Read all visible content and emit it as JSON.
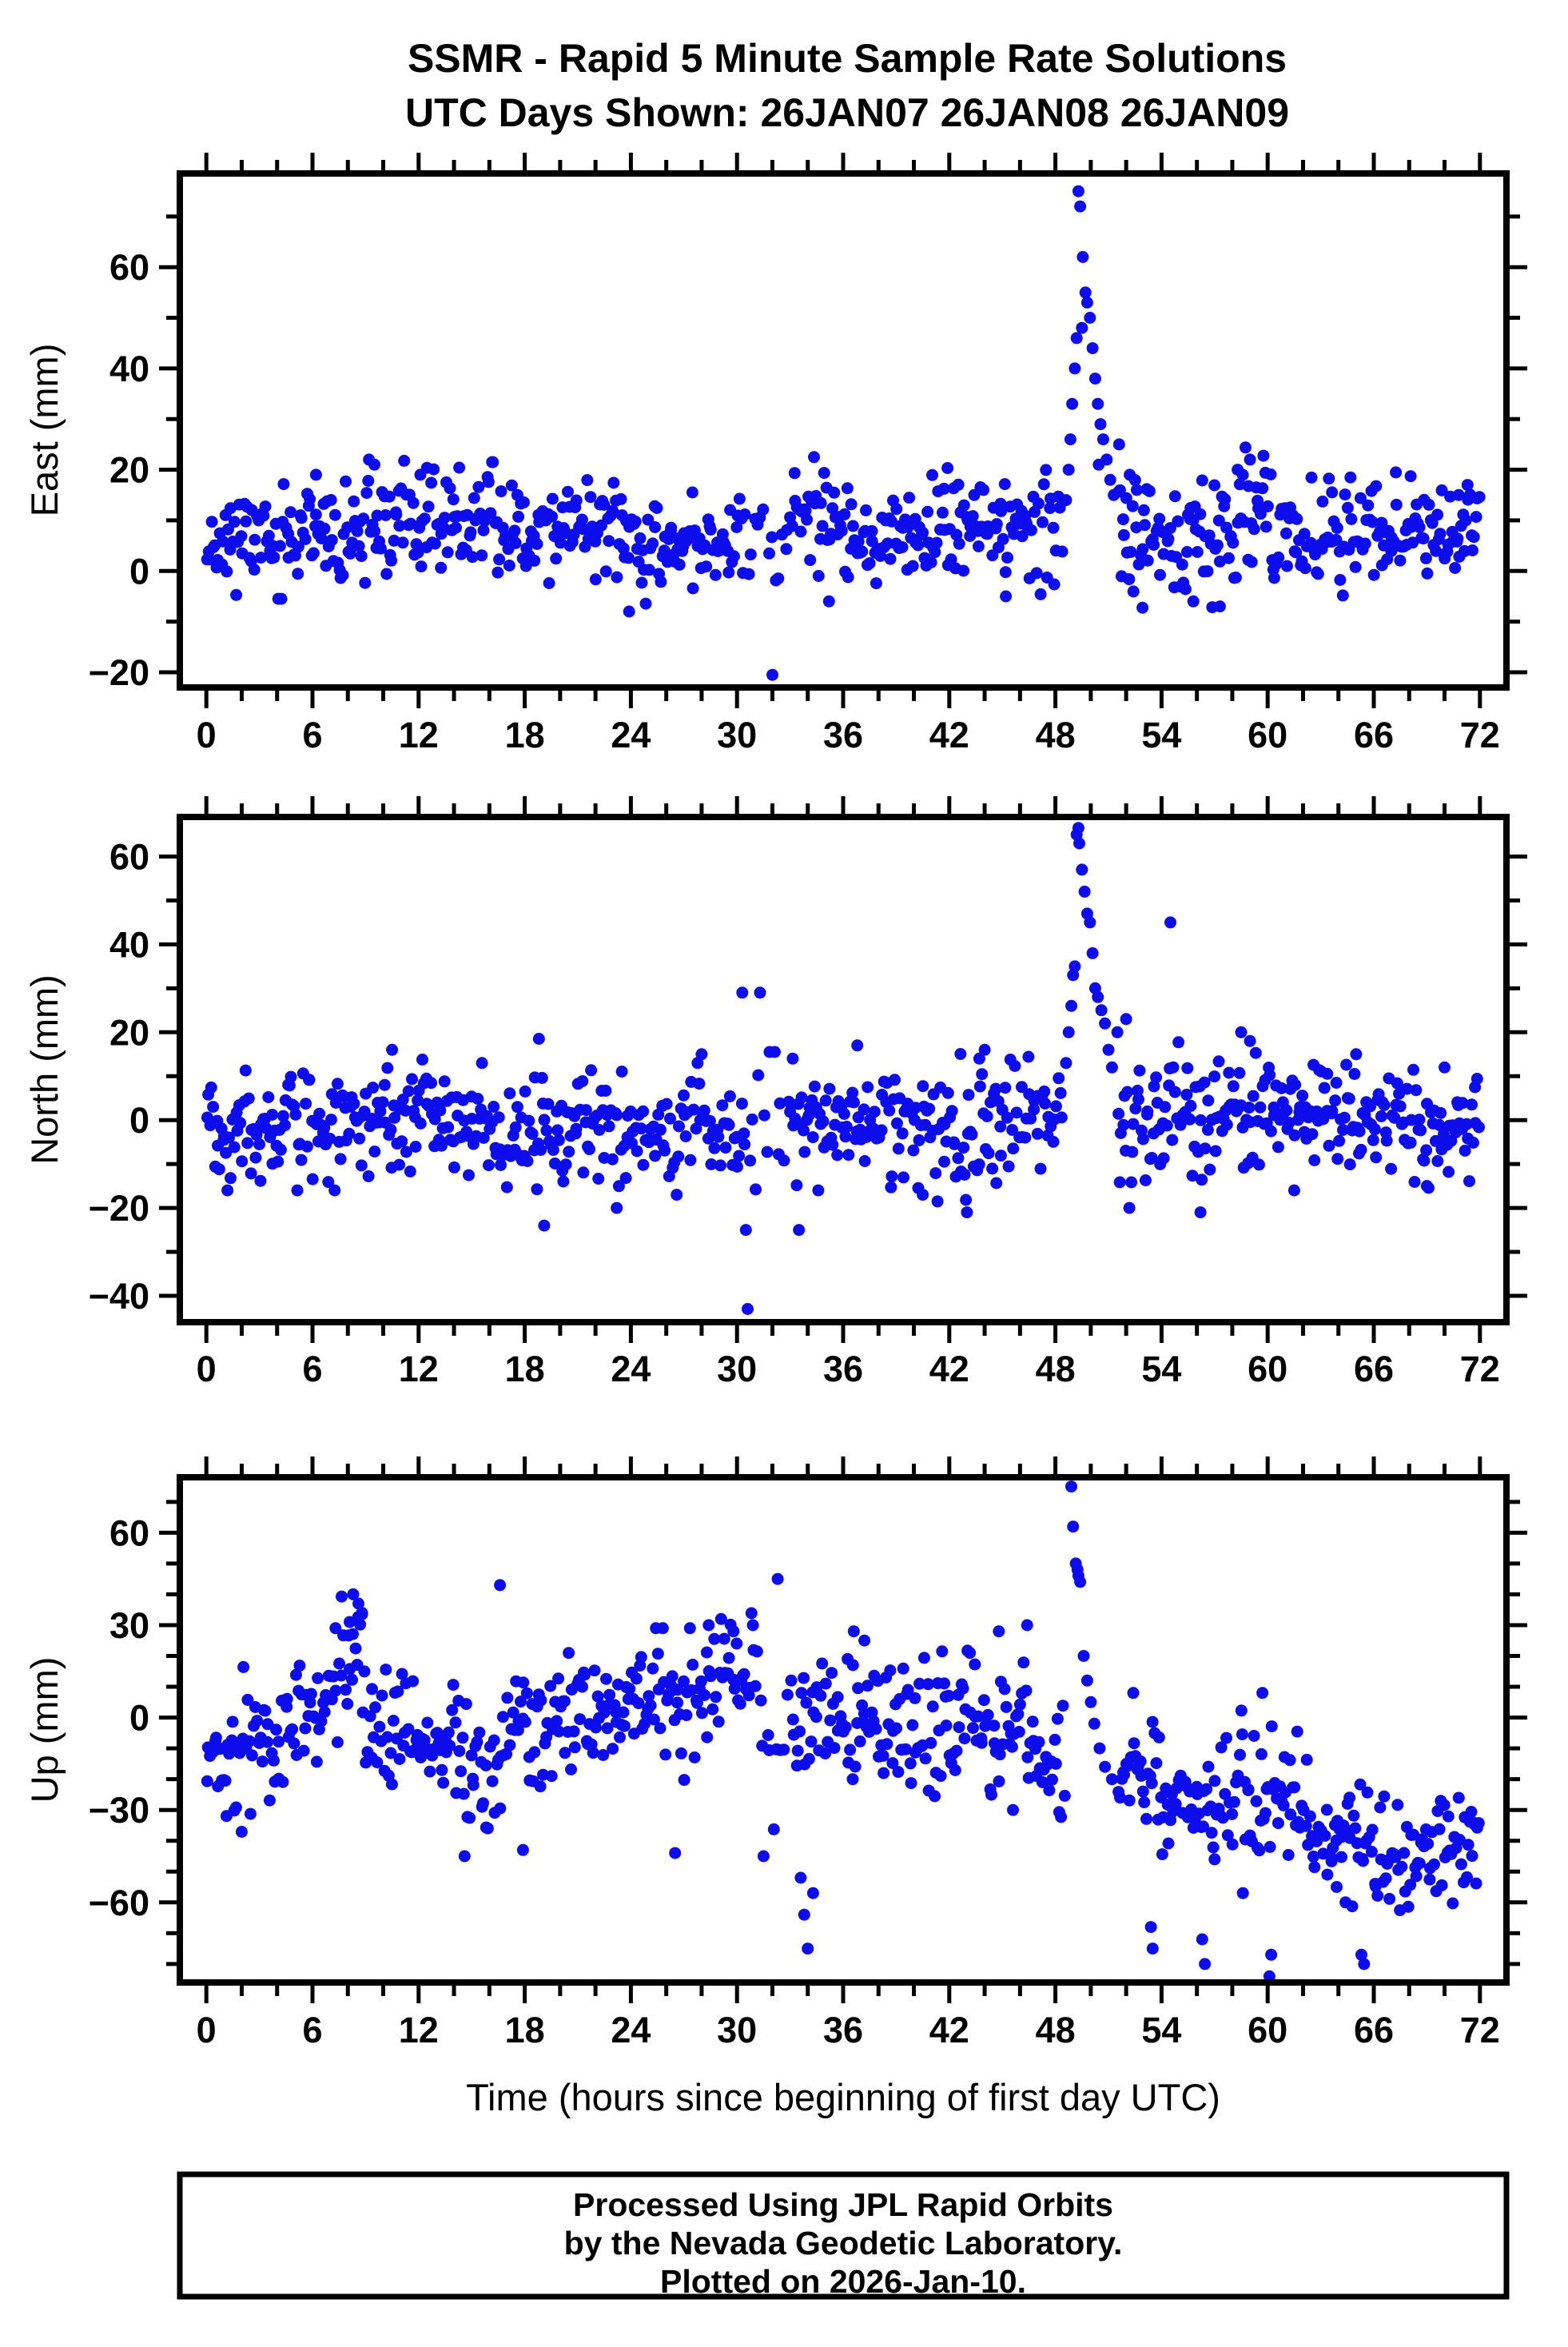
{
  "title": {
    "line1": "SSMR - Rapid 5 Minute Sample Rate Solutions",
    "line2": "UTC Days Shown:  26JAN07 26JAN08 26JAN09"
  },
  "xlabel": "Time (hours since beginning of first day UTC)",
  "footer": {
    "lines": [
      "Processed Using JPL Rapid Orbits",
      "by the Nevada Geodetic Laboratory.",
      "Plotted on 2026-Jan-10."
    ]
  },
  "style": {
    "marker_color": "#0d0dec",
    "marker_radius": 7.5,
    "frame_color": "#000000",
    "background": "#ffffff"
  },
  "chart_data": [
    {
      "type": "scatter",
      "ylabel": "East (mm)",
      "xlim": [
        -1.5,
        73.5
      ],
      "ylim": [
        -23,
        78.5
      ],
      "xticks_major": [
        0,
        6,
        12,
        18,
        24,
        30,
        36,
        42,
        48,
        54,
        60,
        66,
        72
      ],
      "xtick_minor_step": 2,
      "yticks_major": [
        -20,
        0,
        20,
        40,
        60
      ],
      "ytick_minor_step": 10,
      "grid": false,
      "legend": null,
      "sample_rate": "5 minute",
      "seed": 11,
      "baseline_segments": [
        [
          0,
          9,
          6.5,
          6.5,
          4.8,
          11
        ],
        [
          9,
          13,
          9,
          9,
          5.2,
          11
        ],
        [
          13,
          24,
          9,
          9,
          5,
          11
        ],
        [
          24,
          27,
          3.5,
          3.5,
          4,
          11
        ],
        [
          27,
          30.5,
          7,
          7,
          5,
          10
        ],
        [
          30.5,
          33,
          7,
          7,
          6,
          5
        ],
        [
          33,
          36,
          10,
          10,
          5,
          11
        ],
        [
          36,
          41,
          6,
          6,
          4.5,
          11
        ],
        [
          41,
          46,
          8,
          8,
          5.5,
          11
        ],
        [
          46,
          48.4,
          9,
          9,
          6,
          10
        ],
        [
          51.5,
          54,
          9,
          9,
          6.5,
          11
        ],
        [
          54,
          57,
          5,
          5,
          6.5,
          11
        ],
        [
          57,
          60,
          11,
          11,
          6,
          11
        ],
        [
          60,
          66,
          8,
          8,
          5.5,
          11
        ],
        [
          66,
          72,
          8,
          8,
          5,
          11
        ]
      ],
      "outlier_points": [
        [
          32.0,
          -20.5
        ],
        [
          48.6,
          14
        ],
        [
          48.75,
          20
        ],
        [
          48.85,
          26
        ],
        [
          48.95,
          33
        ],
        [
          49.1,
          40
        ],
        [
          49.2,
          46
        ],
        [
          49.3,
          75
        ],
        [
          49.4,
          72
        ],
        [
          49.55,
          62
        ],
        [
          49.7,
          55
        ],
        [
          49.8,
          53
        ],
        [
          49.95,
          50
        ],
        [
          50.1,
          44
        ],
        [
          50.25,
          38
        ],
        [
          50.4,
          33
        ],
        [
          50.55,
          29
        ],
        [
          50.7,
          26
        ],
        [
          50.9,
          22
        ],
        [
          51.1,
          18
        ],
        [
          51.3,
          15
        ],
        [
          49.5,
          48
        ],
        [
          50.45,
          21
        ],
        [
          51.6,
          25
        ],
        [
          52.2,
          19
        ],
        [
          52.6,
          16
        ],
        [
          53.0,
          12
        ],
        [
          23.9,
          -8
        ],
        [
          35.2,
          -6
        ],
        [
          55.8,
          -6
        ],
        [
          57.3,
          -7
        ],
        [
          45.2,
          -5
        ],
        [
          59.0,
          22
        ],
        [
          58.3,
          20
        ],
        [
          71.3,
          17
        ],
        [
          70.8,
          15
        ],
        [
          6.2,
          19
        ],
        [
          9.5,
          21
        ],
        [
          12.1,
          19
        ]
      ]
    },
    {
      "type": "scatter",
      "ylabel": "North (mm)",
      "xlim": [
        -1.5,
        73.5
      ],
      "ylim": [
        -46,
        69
      ],
      "xticks_major": [
        0,
        6,
        12,
        18,
        24,
        30,
        36,
        42,
        48,
        54,
        60,
        66,
        72
      ],
      "xtick_minor_step": 2,
      "yticks_major": [
        -40,
        -20,
        0,
        20,
        40,
        60
      ],
      "ytick_minor_step": 10,
      "grid": false,
      "legend": null,
      "sample_rate": "5 minute",
      "seed": 22,
      "baseline_segments": [
        [
          0,
          9,
          -1,
          -1,
          6,
          11
        ],
        [
          9,
          13,
          0,
          0,
          6,
          11
        ],
        [
          13,
          19,
          -2,
          -2,
          6,
          11
        ],
        [
          19,
          24,
          -1,
          -1,
          6,
          11
        ],
        [
          24,
          30.4,
          -2,
          -2,
          6,
          10
        ],
        [
          30.4,
          33,
          -2,
          -2,
          7,
          5
        ],
        [
          33,
          40,
          -1,
          -1,
          6,
          11
        ],
        [
          40,
          45,
          -1,
          -1,
          7,
          11
        ],
        [
          45,
          48.4,
          2,
          2,
          6,
          10
        ],
        [
          51.5,
          54,
          0,
          0,
          8,
          11
        ],
        [
          54,
          60,
          1,
          1,
          7,
          11
        ],
        [
          60,
          66,
          2,
          2,
          6,
          11
        ],
        [
          66,
          72,
          -2,
          -2,
          6,
          11
        ]
      ],
      "outlier_points": [
        [
          48.6,
          13
        ],
        [
          48.75,
          20
        ],
        [
          48.9,
          26
        ],
        [
          49.0,
          33
        ],
        [
          49.1,
          35
        ],
        [
          49.2,
          65
        ],
        [
          49.3,
          66.5
        ],
        [
          49.35,
          63
        ],
        [
          49.5,
          57
        ],
        [
          49.65,
          52
        ],
        [
          49.8,
          47
        ],
        [
          49.95,
          45
        ],
        [
          50.1,
          38
        ],
        [
          50.25,
          30
        ],
        [
          50.4,
          28
        ],
        [
          50.6,
          25
        ],
        [
          50.8,
          22
        ],
        [
          51.0,
          16
        ],
        [
          51.2,
          12
        ],
        [
          51.5,
          20
        ],
        [
          52.0,
          23
        ],
        [
          54.5,
          45
        ],
        [
          30.3,
          29
        ],
        [
          31.3,
          29
        ],
        [
          30.5,
          -25
        ],
        [
          30.6,
          -43
        ],
        [
          18.8,
          18.5
        ],
        [
          19.1,
          -24
        ],
        [
          43.0,
          -21
        ],
        [
          56.2,
          -21
        ],
        [
          23.2,
          -20
        ],
        [
          44.0,
          16
        ],
        [
          43.7,
          14
        ],
        [
          10.5,
          16
        ],
        [
          28.0,
          15
        ],
        [
          36.8,
          17
        ],
        [
          58.5,
          20
        ],
        [
          59.0,
          18
        ],
        [
          65.0,
          15
        ],
        [
          70.0,
          12
        ],
        [
          69.0,
          -15
        ],
        [
          61.5,
          -16
        ],
        [
          40.5,
          -17
        ],
        [
          33.5,
          -25
        ]
      ]
    },
    {
      "type": "scatter",
      "ylabel": "Up (mm)",
      "xlim": [
        -1.5,
        73.5
      ],
      "ylim": [
        -86,
        78
      ],
      "xticks_major": [
        0,
        6,
        12,
        18,
        24,
        30,
        36,
        42,
        48,
        54,
        60,
        66,
        72
      ],
      "xtick_minor_step": 2,
      "yticks_major": [
        -60,
        -30,
        0,
        30,
        60
      ],
      "ytick_minor_step": 10,
      "grid": false,
      "legend": null,
      "sample_rate": "5 minute",
      "seed": 33,
      "baseline_segments": [
        [
          0,
          2,
          -15,
          -15,
          10,
          11
        ],
        [
          2,
          5,
          -8,
          -8,
          10,
          11
        ],
        [
          5,
          7,
          0,
          8,
          9,
          11
        ],
        [
          7,
          9,
          12,
          18,
          11,
          11
        ],
        [
          9,
          12,
          -4,
          -4,
          9,
          11
        ],
        [
          12,
          14,
          -12,
          -12,
          10,
          11
        ],
        [
          14,
          17,
          -18,
          -18,
          12,
          11
        ],
        [
          17,
          20,
          -5,
          -5,
          10,
          11
        ],
        [
          20,
          24,
          0,
          0,
          10,
          11
        ],
        [
          24,
          28,
          4,
          4,
          10,
          11
        ],
        [
          28,
          31.2,
          12,
          15,
          10,
          10
        ],
        [
          31.2,
          33,
          -5,
          -5,
          14,
          5
        ],
        [
          33,
          36,
          0,
          0,
          12,
          10
        ],
        [
          36,
          40,
          -3,
          -3,
          11,
          11
        ],
        [
          40,
          44,
          2,
          2,
          11,
          11
        ],
        [
          44,
          47,
          -5,
          -5,
          10,
          11
        ],
        [
          47,
          48.6,
          -14,
          -14,
          8,
          10
        ],
        [
          51.5,
          54,
          -18,
          -20,
          9,
          11
        ],
        [
          54,
          58,
          -28,
          -30,
          10,
          11
        ],
        [
          58,
          62,
          -25,
          -27,
          11,
          11
        ],
        [
          62,
          66,
          -36,
          -40,
          9,
          11
        ],
        [
          66,
          70,
          -45,
          -45,
          8,
          11
        ],
        [
          70,
          72,
          -41,
          -38,
          8,
          11
        ]
      ],
      "outlier_points": [
        [
          7.3,
          29
        ],
        [
          16.6,
          43
        ],
        [
          8.3,
          40
        ],
        [
          8.6,
          37
        ],
        [
          8.8,
          34
        ],
        [
          8.1,
          31
        ],
        [
          32.3,
          45
        ],
        [
          30.9,
          30
        ],
        [
          29.8,
          28
        ],
        [
          31.5,
          -45
        ],
        [
          14.6,
          -45
        ],
        [
          17.9,
          -43
        ],
        [
          26.5,
          -44
        ],
        [
          33.6,
          -52
        ],
        [
          33.8,
          -64
        ],
        [
          34.0,
          -75
        ],
        [
          34.3,
          -57
        ],
        [
          48.9,
          75
        ],
        [
          49.0,
          62
        ],
        [
          49.15,
          50
        ],
        [
          49.25,
          48
        ],
        [
          49.3,
          46
        ],
        [
          49.4,
          44
        ],
        [
          49.6,
          20
        ],
        [
          49.8,
          12
        ],
        [
          50.0,
          5
        ],
        [
          50.2,
          -2
        ],
        [
          50.5,
          -10
        ],
        [
          50.8,
          -16
        ],
        [
          51.2,
          -20
        ],
        [
          53.4,
          -68
        ],
        [
          53.5,
          -75
        ],
        [
          56.3,
          -72
        ],
        [
          56.45,
          -80
        ],
        [
          60.1,
          -84
        ],
        [
          60.2,
          -77
        ],
        [
          65.3,
          -77
        ],
        [
          65.45,
          -80
        ],
        [
          58.6,
          -57
        ],
        [
          63.9,
          -55
        ],
        [
          64.4,
          -60
        ],
        [
          57.0,
          -46
        ],
        [
          52.4,
          8
        ],
        [
          59.7,
          8
        ],
        [
          44.8,
          28
        ],
        [
          45.6,
          -30
        ],
        [
          46.4,
          30
        ],
        [
          36.6,
          28
        ],
        [
          37.2,
          25
        ],
        [
          28.4,
          30
        ],
        [
          29.1,
          32
        ],
        [
          71.6,
          -34
        ]
      ]
    }
  ]
}
